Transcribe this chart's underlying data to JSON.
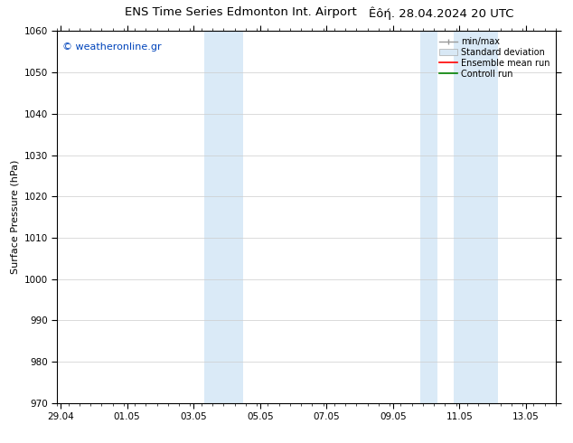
{
  "title_left": "ENS Time Series Edmonton Int. Airport",
  "title_right": "Êôή. 28.04.2024 20 UTC",
  "ylabel": "Surface Pressure (hPa)",
  "xlabel_ticks": [
    "29.04",
    "01.05",
    "03.05",
    "05.05",
    "07.05",
    "09.05",
    "11.05",
    "13.05"
  ],
  "xlabel_tick_positions": [
    0,
    2,
    4,
    6,
    8,
    10,
    12,
    14
  ],
  "ylim": [
    970,
    1060
  ],
  "xlim": [
    -0.1,
    14.6
  ],
  "yticks": [
    970,
    980,
    990,
    1000,
    1010,
    1020,
    1030,
    1040,
    1050,
    1060
  ],
  "shaded_bands": [
    {
      "xmin": 4.33,
      "xmax": 4.83,
      "color": "#daeaf7"
    },
    {
      "xmin": 4.83,
      "xmax": 5.5,
      "color": "#daeaf7"
    },
    {
      "xmin": 10.83,
      "xmax": 11.33,
      "color": "#daeaf7"
    },
    {
      "xmin": 11.83,
      "xmax": 13.17,
      "color": "#daeaf7"
    }
  ],
  "watermark": "© weatheronline.gr",
  "watermark_color": "#0044bb",
  "background_color": "#ffffff",
  "legend_items": [
    {
      "label": "min/max",
      "color": "#999999"
    },
    {
      "label": "Standard deviation",
      "color": "#cccccc"
    },
    {
      "label": "Ensemble mean run",
      "color": "#ff0000"
    },
    {
      "label": "Controll run",
      "color": "#008000"
    }
  ],
  "grid_color": "#cccccc",
  "tick_label_fontsize": 7.5,
  "title_fontsize": 9.5,
  "ylabel_fontsize": 8
}
